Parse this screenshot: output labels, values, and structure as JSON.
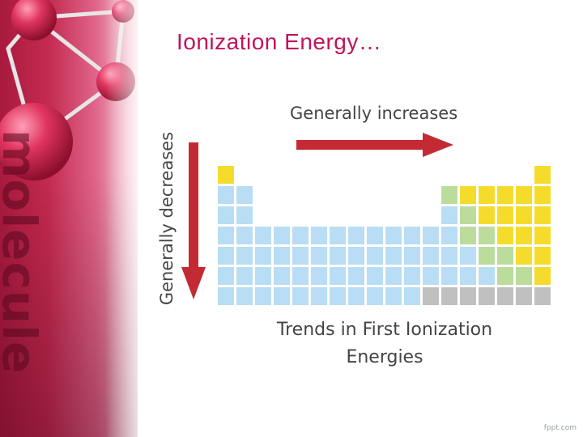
{
  "slide": {
    "title": "Ionization Energy…",
    "watermark": "molecule",
    "footer": "fppt.com"
  },
  "diagram": {
    "horizontal_trend": "Generally increases",
    "vertical_trend": "Generally decreases",
    "caption_line1": "Trends in First Ionization",
    "caption_line2": "Energies"
  },
  "colors": {
    "title": "#c0145c",
    "arrow": "#c42a33",
    "metal": "#b9ddf4",
    "metalloid": "#bcdc9c",
    "nonmetal": "#f5dc2c",
    "lanthanide_row": "#c0c0c0"
  },
  "periodic_table": {
    "columns": 18,
    "rows": [
      [
        "nonmetal",
        "",
        "",
        "",
        "",
        "",
        "",
        "",
        "",
        "",
        "",
        "",
        "",
        "",
        "",
        "",
        "",
        "nonmetal"
      ],
      [
        "metal",
        "metal",
        "",
        "",
        "",
        "",
        "",
        "",
        "",
        "",
        "",
        "",
        "metalloid",
        "nonmetal",
        "nonmetal",
        "nonmetal",
        "nonmetal",
        "nonmetal"
      ],
      [
        "metal",
        "metal",
        "",
        "",
        "",
        "",
        "",
        "",
        "",
        "",
        "",
        "",
        "metal",
        "metalloid",
        "nonmetal",
        "nonmetal",
        "nonmetal",
        "nonmetal"
      ],
      [
        "metal",
        "metal",
        "metal",
        "metal",
        "metal",
        "metal",
        "metal",
        "metal",
        "metal",
        "metal",
        "metal",
        "metal",
        "metal",
        "metalloid",
        "metalloid",
        "nonmetal",
        "nonmetal",
        "nonmetal"
      ],
      [
        "metal",
        "metal",
        "metal",
        "metal",
        "metal",
        "metal",
        "metal",
        "metal",
        "metal",
        "metal",
        "metal",
        "metal",
        "metal",
        "metal",
        "metalloid",
        "metalloid",
        "nonmetal",
        "nonmetal"
      ],
      [
        "metal",
        "metal",
        "metal",
        "metal",
        "metal",
        "metal",
        "metal",
        "metal",
        "metal",
        "metal",
        "metal",
        "metal",
        "metal",
        "metal",
        "metal",
        "metalloid",
        "metalloid",
        "nonmetal"
      ],
      [
        "metal",
        "metal",
        "metal",
        "metal",
        "metal",
        "metal",
        "metal",
        "metal",
        "metal",
        "metal",
        "metal",
        "lanthanide_row",
        "lanthanide_row",
        "lanthanide_row",
        "lanthanide_row",
        "lanthanide_row",
        "lanthanide_row",
        "lanthanide_row"
      ]
    ]
  }
}
